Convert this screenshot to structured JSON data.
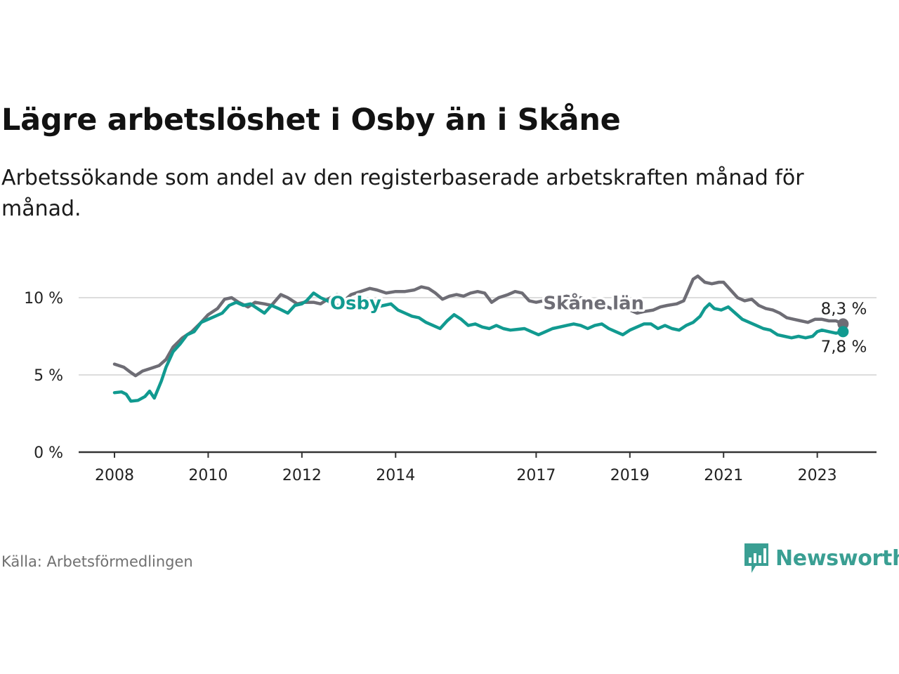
{
  "title": "Lägre arbetslöshet i Osby än i Skåne",
  "subtitle": "Arbetssökande som andel av den registerbaserade arbetskraften månad för månad.",
  "source": "Källa: Arbetsförmedlingen",
  "brand": {
    "name": "Newsworthy",
    "icon": "newsworthy-logo-icon"
  },
  "colors": {
    "skane": "#6e6d75",
    "osby": "#119a90",
    "axis": "#333333",
    "grid": "#dddddd"
  },
  "chart_data": {
    "type": "line",
    "title": "Lägre arbetslöshet i Osby än i Skåne",
    "xlabel": "",
    "ylabel": "",
    "xlim": [
      2008.0,
      2024.25
    ],
    "ylim": [
      0,
      10
    ],
    "yticks": [
      0,
      5,
      10
    ],
    "ytick_labels": [
      "0 %",
      "5 %",
      "10 %"
    ],
    "xticks": [
      2008,
      2010,
      2012,
      2014,
      2017,
      2019,
      2021,
      2023
    ],
    "xtick_labels": [
      "2008",
      "2010",
      "2012",
      "2014",
      "2017",
      "2019",
      "2021",
      "2023"
    ],
    "grid": true,
    "legend": "inline labels",
    "series": [
      {
        "name": "Skåne län",
        "color": "#6e6d75",
        "end_label": "8,3 %",
        "points": [
          [
            2008.0,
            5.7
          ],
          [
            2008.2,
            5.5
          ],
          [
            2008.33,
            5.2
          ],
          [
            2008.45,
            4.95
          ],
          [
            2008.6,
            5.25
          ],
          [
            2008.8,
            5.45
          ],
          [
            2008.95,
            5.6
          ],
          [
            2009.1,
            6.0
          ],
          [
            2009.25,
            6.8
          ],
          [
            2009.45,
            7.4
          ],
          [
            2009.65,
            7.8
          ],
          [
            2009.85,
            8.4
          ],
          [
            2010.0,
            8.9
          ],
          [
            2010.2,
            9.3
          ],
          [
            2010.35,
            9.9
          ],
          [
            2010.5,
            10.0
          ],
          [
            2010.65,
            9.7
          ],
          [
            2010.85,
            9.4
          ],
          [
            2011.0,
            9.7
          ],
          [
            2011.2,
            9.6
          ],
          [
            2011.35,
            9.5
          ],
          [
            2011.55,
            10.2
          ],
          [
            2011.7,
            10.0
          ],
          [
            2011.9,
            9.6
          ],
          [
            2012.05,
            9.7
          ],
          [
            2012.25,
            9.7
          ],
          [
            2012.4,
            9.6
          ],
          [
            2012.55,
            9.9
          ],
          [
            2012.75,
            10.2
          ],
          [
            2012.9,
            9.8
          ],
          [
            2013.05,
            10.2
          ],
          [
            2013.25,
            10.4
          ],
          [
            2013.45,
            10.6
          ],
          [
            2013.6,
            10.5
          ],
          [
            2013.8,
            10.3
          ],
          [
            2014.0,
            10.4
          ],
          [
            2014.2,
            10.4
          ],
          [
            2014.4,
            10.5
          ],
          [
            2014.55,
            10.7
          ],
          [
            2014.7,
            10.6
          ],
          [
            2014.85,
            10.3
          ],
          [
            2015.0,
            9.9
          ],
          [
            2015.15,
            10.1
          ],
          [
            2015.3,
            10.2
          ],
          [
            2015.45,
            10.1
          ],
          [
            2015.6,
            10.3
          ],
          [
            2015.75,
            10.4
          ],
          [
            2015.9,
            10.3
          ],
          [
            2016.05,
            9.7
          ],
          [
            2016.2,
            10.0
          ],
          [
            2016.4,
            10.2
          ],
          [
            2016.55,
            10.4
          ],
          [
            2016.7,
            10.3
          ],
          [
            2016.85,
            9.8
          ],
          [
            2017.0,
            9.7
          ],
          [
            2017.15,
            9.8
          ],
          [
            2017.3,
            9.85
          ],
          [
            2017.5,
            10.0
          ],
          [
            2017.65,
            10.1
          ],
          [
            2017.8,
            10.0
          ],
          [
            2017.95,
            10.0
          ],
          [
            2018.1,
            9.8
          ],
          [
            2018.25,
            9.6
          ],
          [
            2018.45,
            9.5
          ],
          [
            2018.6,
            9.3
          ],
          [
            2018.8,
            9.3
          ],
          [
            2019.0,
            9.2
          ],
          [
            2019.15,
            9.0
          ],
          [
            2019.3,
            9.1
          ],
          [
            2019.5,
            9.2
          ],
          [
            2019.65,
            9.4
          ],
          [
            2019.8,
            9.5
          ],
          [
            2020.0,
            9.6
          ],
          [
            2020.15,
            9.8
          ],
          [
            2020.25,
            10.5
          ],
          [
            2020.35,
            11.2
          ],
          [
            2020.45,
            11.4
          ],
          [
            2020.6,
            11.0
          ],
          [
            2020.75,
            10.9
          ],
          [
            2020.9,
            11.0
          ],
          [
            2021.0,
            11.0
          ],
          [
            2021.15,
            10.5
          ],
          [
            2021.3,
            10.0
          ],
          [
            2021.45,
            9.8
          ],
          [
            2021.6,
            9.9
          ],
          [
            2021.75,
            9.5
          ],
          [
            2021.9,
            9.3
          ],
          [
            2022.05,
            9.2
          ],
          [
            2022.2,
            9.0
          ],
          [
            2022.35,
            8.7
          ],
          [
            2022.5,
            8.6
          ],
          [
            2022.65,
            8.5
          ],
          [
            2022.8,
            8.4
          ],
          [
            2022.95,
            8.6
          ],
          [
            2023.1,
            8.6
          ],
          [
            2023.25,
            8.5
          ],
          [
            2023.4,
            8.5
          ],
          [
            2023.55,
            8.3
          ]
        ]
      },
      {
        "name": "Osby",
        "color": "#119a90",
        "end_label": "7,8 %",
        "points": [
          [
            2008.0,
            3.85
          ],
          [
            2008.15,
            3.9
          ],
          [
            2008.25,
            3.75
          ],
          [
            2008.35,
            3.3
          ],
          [
            2008.5,
            3.35
          ],
          [
            2008.65,
            3.6
          ],
          [
            2008.75,
            3.95
          ],
          [
            2008.85,
            3.5
          ],
          [
            2009.0,
            4.6
          ],
          [
            2009.1,
            5.5
          ],
          [
            2009.25,
            6.5
          ],
          [
            2009.4,
            7.0
          ],
          [
            2009.55,
            7.6
          ],
          [
            2009.7,
            7.8
          ],
          [
            2009.85,
            8.4
          ],
          [
            2010.0,
            8.6
          ],
          [
            2010.15,
            8.8
          ],
          [
            2010.3,
            9.0
          ],
          [
            2010.45,
            9.5
          ],
          [
            2010.6,
            9.7
          ],
          [
            2010.75,
            9.5
          ],
          [
            2010.9,
            9.6
          ],
          [
            2011.05,
            9.3
          ],
          [
            2011.2,
            9.0
          ],
          [
            2011.35,
            9.5
          ],
          [
            2011.5,
            9.3
          ],
          [
            2011.7,
            9.0
          ],
          [
            2011.85,
            9.5
          ],
          [
            2012.0,
            9.6
          ],
          [
            2012.1,
            9.8
          ],
          [
            2012.25,
            10.3
          ],
          [
            2012.4,
            10.0
          ],
          [
            2012.55,
            9.8
          ],
          [
            2012.7,
            9.5
          ],
          [
            2012.85,
            9.5
          ],
          [
            2013.0,
            9.7
          ],
          [
            2013.15,
            9.6
          ],
          [
            2013.3,
            9.3
          ],
          [
            2013.45,
            9.5
          ],
          [
            2013.6,
            9.4
          ],
          [
            2013.75,
            9.5
          ],
          [
            2013.9,
            9.6
          ],
          [
            2014.05,
            9.2
          ],
          [
            2014.2,
            9.0
          ],
          [
            2014.35,
            8.8
          ],
          [
            2014.5,
            8.7
          ],
          [
            2014.65,
            8.4
          ],
          [
            2014.8,
            8.2
          ],
          [
            2014.95,
            8.0
          ],
          [
            2015.1,
            8.5
          ],
          [
            2015.25,
            8.9
          ],
          [
            2015.4,
            8.6
          ],
          [
            2015.55,
            8.2
          ],
          [
            2015.7,
            8.3
          ],
          [
            2015.85,
            8.1
          ],
          [
            2016.0,
            8.0
          ],
          [
            2016.15,
            8.2
          ],
          [
            2016.3,
            8.0
          ],
          [
            2016.45,
            7.9
          ],
          [
            2016.6,
            7.95
          ],
          [
            2016.75,
            8.0
          ],
          [
            2016.9,
            7.8
          ],
          [
            2017.05,
            7.6
          ],
          [
            2017.2,
            7.8
          ],
          [
            2017.35,
            8.0
          ],
          [
            2017.5,
            8.1
          ],
          [
            2017.65,
            8.2
          ],
          [
            2017.8,
            8.3
          ],
          [
            2017.95,
            8.2
          ],
          [
            2018.1,
            8.0
          ],
          [
            2018.25,
            8.2
          ],
          [
            2018.4,
            8.3
          ],
          [
            2018.55,
            8.0
          ],
          [
            2018.7,
            7.8
          ],
          [
            2018.85,
            7.6
          ],
          [
            2019.0,
            7.9
          ],
          [
            2019.15,
            8.1
          ],
          [
            2019.3,
            8.3
          ],
          [
            2019.45,
            8.3
          ],
          [
            2019.6,
            8.0
          ],
          [
            2019.75,
            8.2
          ],
          [
            2019.9,
            8.0
          ],
          [
            2020.05,
            7.9
          ],
          [
            2020.2,
            8.2
          ],
          [
            2020.35,
            8.4
          ],
          [
            2020.5,
            8.8
          ],
          [
            2020.6,
            9.3
          ],
          [
            2020.7,
            9.6
          ],
          [
            2020.8,
            9.3
          ],
          [
            2020.95,
            9.2
          ],
          [
            2021.1,
            9.4
          ],
          [
            2021.25,
            9.0
          ],
          [
            2021.4,
            8.6
          ],
          [
            2021.55,
            8.4
          ],
          [
            2021.7,
            8.2
          ],
          [
            2021.85,
            8.0
          ],
          [
            2022.0,
            7.9
          ],
          [
            2022.15,
            7.6
          ],
          [
            2022.3,
            7.5
          ],
          [
            2022.45,
            7.4
          ],
          [
            2022.6,
            7.5
          ],
          [
            2022.75,
            7.4
          ],
          [
            2022.9,
            7.5
          ],
          [
            2023.0,
            7.8
          ],
          [
            2023.1,
            7.9
          ],
          [
            2023.25,
            7.8
          ],
          [
            2023.4,
            7.7
          ],
          [
            2023.55,
            7.8
          ]
        ]
      }
    ]
  }
}
